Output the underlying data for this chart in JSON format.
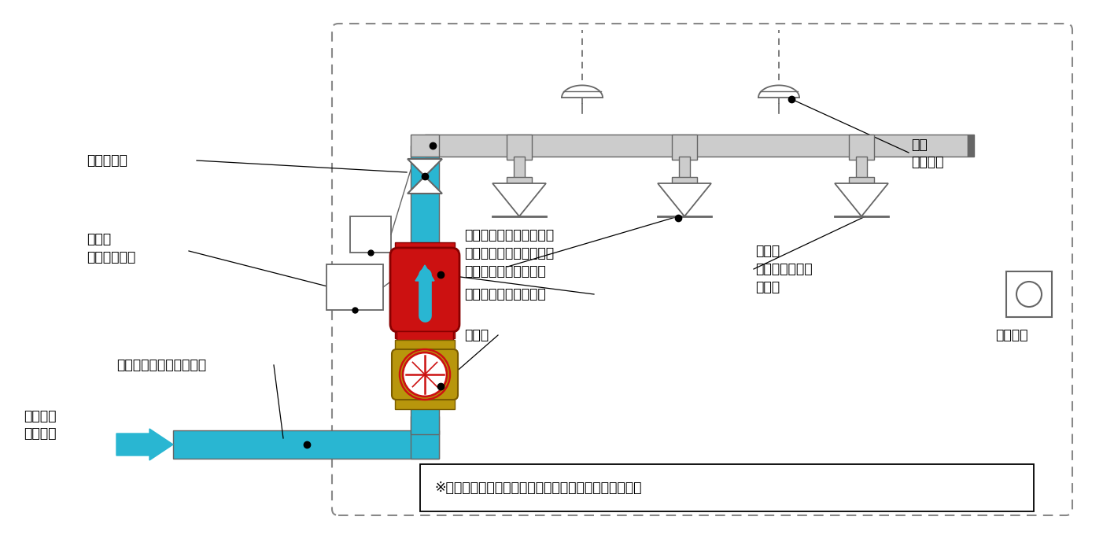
{
  "bg_color": "#ffffff",
  "pipe_color": "#29b6d2",
  "pipe_gray": "#999999",
  "pipe_dark_gray": "#666666",
  "pipe_light_gray": "#cccccc",
  "red_color": "#cc1111",
  "gold_color": "#b8960c",
  "text_color": "#000000",
  "note_text": "※開放弁とは、水の出口が常に開いているものをいう。",
  "labels": {
    "issai_kaihouben": "一斉開放弁",
    "valve": "バルブ",
    "jidou": "自動開放機構",
    "kassuimizu": "加圧水で満たされている",
    "kassuisousui": "加圧送水",
    "souchiyor": "装置より",
    "jochishiki": "流水検知装置（湿式）",
    "seigyo": "制御弁",
    "joujidaikiatsu": "常時大気圧になっており",
    "sadou": "作動時にすべてのヘッド",
    "ichiji": "から一斉に放水される",
    "kaihougata": "開放型",
    "sprinkler": "スプリンクラー",
    "head": "ヘッド",
    "kasai": "火災",
    "kanchiki": "感知器等",
    "shuukidou": "手動起動"
  }
}
